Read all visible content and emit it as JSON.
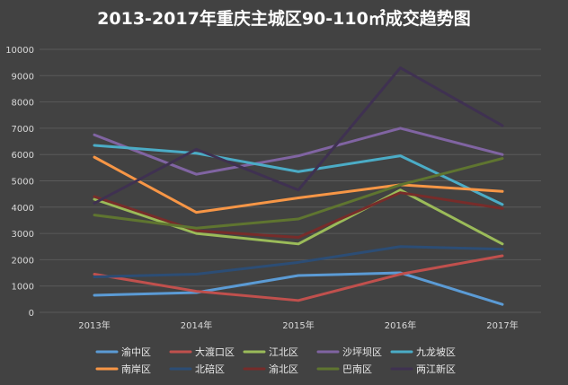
{
  "chart_data": {
    "type": "line",
    "title": "2013-2017年重庆主城区90-110㎡成交趋势图",
    "xlabel": "",
    "ylabel": "",
    "categories": [
      "2013年",
      "2014年",
      "2015年",
      "2016年",
      "2017年"
    ],
    "ylim": [
      0,
      10000
    ],
    "yticks": [
      0,
      1000,
      2000,
      3000,
      4000,
      5000,
      6000,
      7000,
      8000,
      9000,
      10000
    ],
    "grid": true,
    "legend_position": "bottom",
    "series": [
      {
        "name": "渝中区",
        "color": "#5b9bd5",
        "values": [
          650,
          750,
          1400,
          1500,
          300
        ]
      },
      {
        "name": "大渡口区",
        "color": "#c0504d",
        "values": [
          1450,
          800,
          450,
          1450,
          2150
        ]
      },
      {
        "name": "江北区",
        "color": "#9bbb59",
        "values": [
          4300,
          3000,
          2600,
          4650,
          2600
        ]
      },
      {
        "name": "沙坪坝区",
        "color": "#8064a2",
        "values": [
          6750,
          5250,
          5950,
          7000,
          6000
        ]
      },
      {
        "name": "九龙坡区",
        "color": "#4bacc6",
        "values": [
          6350,
          6050,
          5350,
          5950,
          4100
        ]
      },
      {
        "name": "南岸区",
        "color": "#f79646",
        "values": [
          5900,
          3800,
          4350,
          4850,
          4600
        ]
      },
      {
        "name": "北碚区",
        "color": "#2c4d75",
        "values": [
          1350,
          1450,
          1900,
          2500,
          2400
        ]
      },
      {
        "name": "渝北区",
        "color": "#772c2a",
        "values": [
          4400,
          3100,
          2850,
          4550,
          3950
        ]
      },
      {
        "name": "巴南区",
        "color": "#5f7530",
        "values": [
          3700,
          3200,
          3550,
          4850,
          5850
        ]
      },
      {
        "name": "两江新区",
        "color": "#3f3151",
        "values": [
          4150,
          6200,
          4650,
          9300,
          7100
        ]
      }
    ]
  }
}
